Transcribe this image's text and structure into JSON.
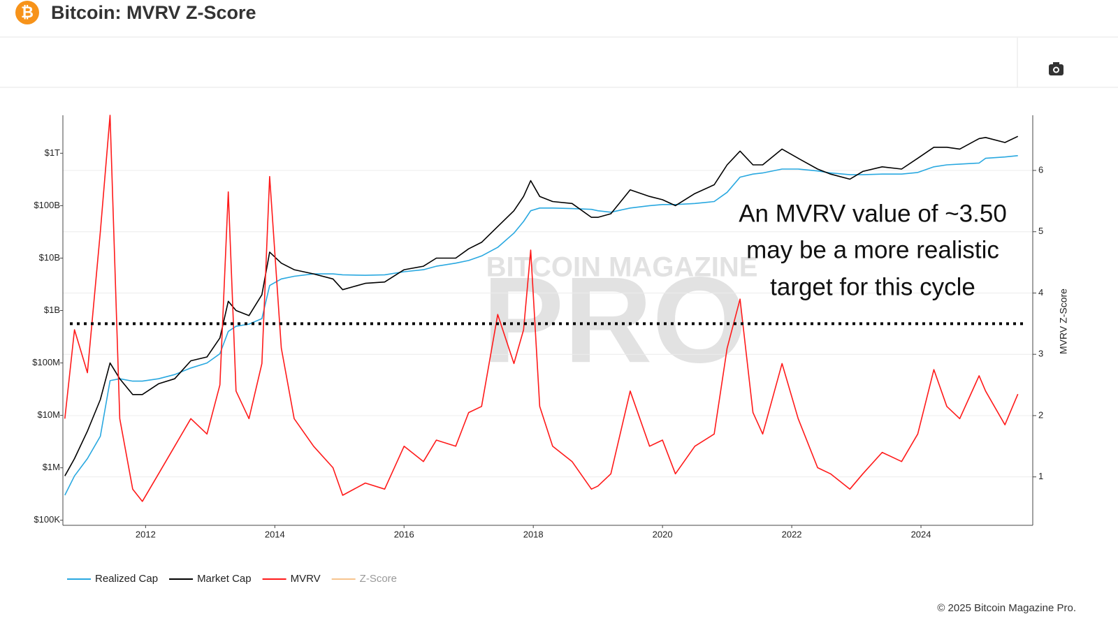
{
  "header": {
    "title": "Bitcoin: MVRV Z-Score"
  },
  "footer": "© 2025 Bitcoin Magazine Pro.",
  "chart_data": {
    "type": "line",
    "watermark": [
      "BITCOIN MAGAZINE",
      "PRO"
    ],
    "annotation": [
      "An MVRV value of ~3.50",
      "may be a more realistic",
      "target for this cycle"
    ],
    "reference_line": {
      "value": 3.5,
      "axis": "y2"
    },
    "y2_label": "MVRV Z-Score",
    "xlim": [
      2010.72,
      2025.73
    ],
    "xticks": [
      2012,
      2014,
      2016,
      2018,
      2020,
      2022,
      2024
    ],
    "ylog": true,
    "ylim": [
      80000,
      5300000000000.0
    ],
    "yticks": [
      {
        "value": 100000,
        "label": "$100K"
      },
      {
        "value": 1000000,
        "label": "$1M"
      },
      {
        "value": 10000000,
        "label": "$10M"
      },
      {
        "value": 100000000,
        "label": "$100M"
      },
      {
        "value": 1000000000,
        "label": "$1B"
      },
      {
        "value": 10000000000,
        "label": "$10B"
      },
      {
        "value": 100000000000,
        "label": "$100B"
      },
      {
        "value": 1000000000000,
        "label": "$1T"
      }
    ],
    "y2lim": [
      0.21,
      6.9
    ],
    "y2ticks": [
      1,
      2,
      3,
      4,
      5,
      6
    ],
    "grid": true,
    "x": [
      2010.75,
      2010.9,
      2011.1,
      2011.3,
      2011.45,
      2011.6,
      2011.8,
      2011.95,
      2012.2,
      2012.45,
      2012.7,
      2012.95,
      2013.15,
      2013.28,
      2013.4,
      2013.6,
      2013.8,
      2013.92,
      2014.1,
      2014.3,
      2014.6,
      2014.9,
      2015.05,
      2015.4,
      2015.7,
      2016.0,
      2016.3,
      2016.5,
      2016.8,
      2017.0,
      2017.2,
      2017.45,
      2017.7,
      2017.85,
      2017.96,
      2018.1,
      2018.3,
      2018.6,
      2018.9,
      2019.0,
      2019.2,
      2019.5,
      2019.8,
      2020.0,
      2020.2,
      2020.5,
      2020.8,
      2021.0,
      2021.2,
      2021.4,
      2021.55,
      2021.85,
      2022.1,
      2022.4,
      2022.6,
      2022.9,
      2023.1,
      2023.4,
      2023.7,
      2023.95,
      2024.2,
      2024.4,
      2024.6,
      2024.9,
      2025.0,
      2025.3,
      2025.5
    ],
    "series": [
      {
        "name": "Realized Cap",
        "color": "#29a8e0",
        "axis": "y",
        "visible": true,
        "values": [
          300000,
          700000,
          1500000,
          4000000,
          46000000,
          50000000,
          45000000,
          45000000,
          50000000,
          60000000,
          80000000,
          100000000,
          150000000,
          400000000,
          500000000,
          550000000,
          700000000,
          3000000000,
          4000000000,
          4500000000,
          5000000000,
          5000000000,
          4800000000,
          4700000000,
          4800000000,
          5500000000,
          6000000000,
          7000000000,
          8000000000,
          9000000000,
          11000000000,
          16000000000,
          30000000000,
          50000000000,
          80000000000,
          90000000000,
          90000000000,
          88000000000,
          85000000000,
          80000000000,
          75000000000,
          90000000000,
          100000000000,
          105000000000,
          105000000000,
          110000000000,
          120000000000,
          180000000000,
          350000000000,
          400000000000,
          420000000000,
          500000000000,
          500000000000,
          460000000000,
          420000000000,
          390000000000,
          390000000000,
          400000000000,
          400000000000,
          430000000000,
          550000000000,
          600000000000,
          620000000000,
          650000000000,
          800000000000,
          850000000000,
          900000000000
        ]
      },
      {
        "name": "Market Cap",
        "color": "#000000",
        "axis": "y",
        "visible": true,
        "values": [
          700000,
          1500000,
          5000000,
          20000000,
          100000000,
          50000000,
          25000000,
          25000000,
          40000000,
          50000000,
          110000000,
          130000000,
          300000000,
          1500000000,
          1000000000,
          800000000,
          2000000000,
          13000000000,
          8000000000,
          6000000000,
          5000000000,
          4000000000,
          2500000000,
          3300000000,
          3500000000,
          6000000000,
          7000000000,
          10000000000,
          10000000000,
          15000000000,
          20000000000,
          40000000000,
          80000000000,
          150000000000,
          300000000000,
          150000000000,
          120000000000,
          110000000000,
          60000000000,
          60000000000,
          70000000000,
          200000000000,
          150000000000,
          130000000000,
          100000000000,
          170000000000,
          250000000000,
          600000000000,
          1100000000000,
          600000000000,
          600000000000,
          1200000000000,
          800000000000,
          500000000000,
          400000000000,
          320000000000,
          450000000000,
          550000000000,
          500000000000,
          800000000000,
          1300000000000,
          1300000000000,
          1200000000000,
          1900000000000,
          2000000000000,
          1600000000000,
          2100000000000
        ]
      },
      {
        "name": "MVRV",
        "color": "#ff1a1a",
        "axis": "y2",
        "visible": true,
        "values": [
          1.95,
          3.4,
          2.7,
          5.0,
          6.9,
          1.95,
          0.8,
          0.6,
          1.05,
          1.5,
          1.95,
          1.7,
          2.5,
          5.65,
          2.4,
          1.95,
          2.85,
          5.9,
          3.1,
          1.95,
          1.5,
          1.15,
          0.7,
          0.9,
          0.8,
          1.5,
          1.25,
          1.6,
          1.5,
          2.05,
          2.15,
          3.65,
          2.85,
          3.4,
          4.7,
          2.15,
          1.5,
          1.25,
          0.8,
          0.85,
          1.05,
          2.4,
          1.5,
          1.6,
          1.05,
          1.5,
          1.7,
          3.1,
          3.9,
          2.05,
          1.7,
          2.85,
          1.95,
          1.15,
          1.05,
          0.8,
          1.05,
          1.4,
          1.25,
          1.7,
          2.75,
          2.15,
          1.95,
          2.65,
          2.4,
          1.85,
          2.35
        ]
      },
      {
        "name": "Z-Score",
        "color": "#f7c48e",
        "axis": "y2",
        "visible": false,
        "values": [
          null,
          null,
          null,
          null,
          null,
          null,
          null,
          null,
          null,
          null,
          null,
          null,
          null,
          null,
          null,
          null,
          null,
          null,
          null,
          null,
          null,
          null,
          null,
          null,
          null,
          null,
          null,
          null,
          null,
          null,
          null,
          null,
          null,
          null,
          null,
          null,
          null,
          null,
          null,
          null,
          null,
          null,
          null,
          null,
          null,
          null,
          null,
          null,
          null,
          null,
          null,
          null,
          null,
          null,
          null,
          null,
          null,
          null,
          null,
          null,
          null,
          null,
          null,
          null,
          null,
          null,
          null
        ]
      }
    ]
  }
}
